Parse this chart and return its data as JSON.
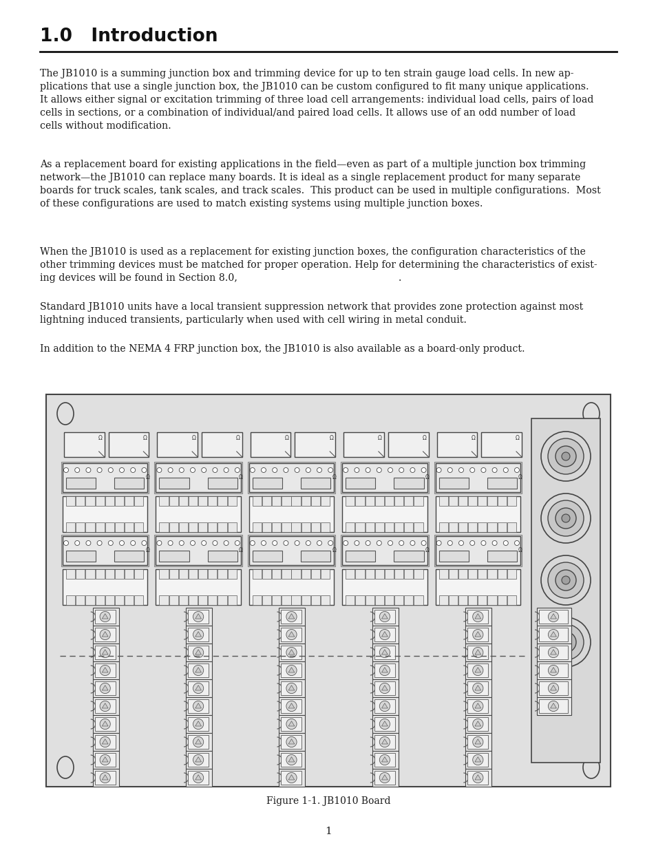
{
  "title": "1.0   Introduction",
  "page_number": "1",
  "figure_caption": "Figure 1-1. JB1010 Board",
  "background_color": "#ffffff",
  "text_color": "#1a1a1a",
  "paragraph1": "The JB1010 is a summing junction box and trimming device for up to ten strain gauge load cells. In new ap-\nplications that use a single junction box, the JB1010 can be custom configured to fit many unique applications.\nIt allows either signal or excitation trimming of three load cell arrangements: individual load cells, pairs of load\ncells in sections, or a combination of individual/and paired load cells. It allows use of an odd number of load\ncells without modification.",
  "paragraph2": "As a replacement board for existing applications in the field—even as part of a multiple junction box trimming\nnetwork—the JB1010 can replace many boards. It is ideal as a single replacement product for many separate\nboards for truck scales, tank scales, and track scales.  This product can be used in multiple configurations.  Most\nof these configurations are used to match existing systems using multiple junction boxes.",
  "paragraph3": "When the JB1010 is used as a replacement for existing junction boxes, the configuration characteristics of the\nother trimming devices must be matched for proper operation. Help for determining the characteristics of exist-\ning devices will be found in Section 8.0,                                                    .",
  "paragraph4": "Standard JB1010 units have a local transient suppression network that provides zone protection against most\nlightning induced transients, particularly when used with cell wiring in metal conduit.",
  "paragraph5": "In addition to the NEMA 4 FRP junction box, the JB1010 is also available as a board-only product.",
  "title_font_size": 19,
  "body_font_size": 10.2,
  "line_color": "#000000",
  "board_bg": "#e8e8e8",
  "board_border": "#555555"
}
